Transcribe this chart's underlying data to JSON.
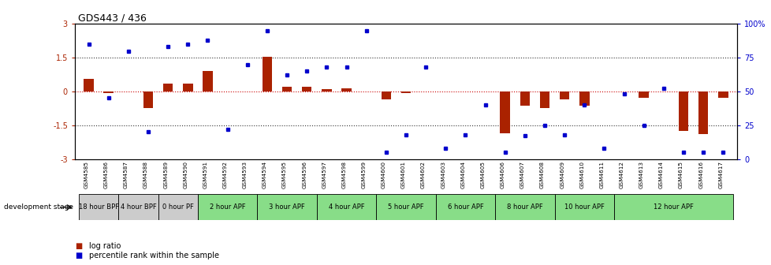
{
  "title": "GDS443 / 436",
  "samples": [
    "GSM4585",
    "GSM4586",
    "GSM4587",
    "GSM4588",
    "GSM4589",
    "GSM4590",
    "GSM4591",
    "GSM4592",
    "GSM4593",
    "GSM4594",
    "GSM4595",
    "GSM4596",
    "GSM4597",
    "GSM4598",
    "GSM4599",
    "GSM4600",
    "GSM4601",
    "GSM4602",
    "GSM4603",
    "GSM4604",
    "GSM4605",
    "GSM4606",
    "GSM4607",
    "GSM4608",
    "GSM4609",
    "GSM4610",
    "GSM4611",
    "GSM4612",
    "GSM4613",
    "GSM4614",
    "GSM4615",
    "GSM4616",
    "GSM4617"
  ],
  "log_ratio": [
    0.55,
    -0.08,
    0.0,
    -0.75,
    0.35,
    0.35,
    0.9,
    0.0,
    0.0,
    1.55,
    0.2,
    0.2,
    0.1,
    0.12,
    0.0,
    -0.35,
    -0.07,
    0.0,
    0.0,
    0.0,
    0.0,
    -1.85,
    -0.65,
    -0.75,
    -0.35,
    -0.65,
    0.0,
    0.0,
    -0.28,
    0.0,
    -1.75,
    -1.9,
    -0.3
  ],
  "percentile": [
    85,
    45,
    80,
    20,
    83,
    85,
    88,
    22,
    70,
    95,
    62,
    65,
    68,
    68,
    95,
    5,
    18,
    68,
    8,
    18,
    40,
    5,
    17,
    25,
    18,
    40,
    8,
    48,
    25,
    52,
    5,
    5,
    5
  ],
  "stages": [
    {
      "label": "18 hour BPF",
      "start": 0,
      "end": 2,
      "color": "#cccccc"
    },
    {
      "label": "4 hour BPF",
      "start": 2,
      "end": 4,
      "color": "#cccccc"
    },
    {
      "label": "0 hour PF",
      "start": 4,
      "end": 6,
      "color": "#cccccc"
    },
    {
      "label": "2 hour APF",
      "start": 6,
      "end": 9,
      "color": "#88dd88"
    },
    {
      "label": "3 hour APF",
      "start": 9,
      "end": 12,
      "color": "#88dd88"
    },
    {
      "label": "4 hour APF",
      "start": 12,
      "end": 15,
      "color": "#88dd88"
    },
    {
      "label": "5 hour APF",
      "start": 15,
      "end": 18,
      "color": "#88dd88"
    },
    {
      "label": "6 hour APF",
      "start": 18,
      "end": 21,
      "color": "#88dd88"
    },
    {
      "label": "8 hour APF",
      "start": 21,
      "end": 24,
      "color": "#88dd88"
    },
    {
      "label": "10 hour APF",
      "start": 24,
      "end": 27,
      "color": "#88dd88"
    },
    {
      "label": "12 hour APF",
      "start": 27,
      "end": 33,
      "color": "#88dd88"
    }
  ],
  "ylim": [
    -3,
    3
  ],
  "y2lim": [
    0,
    100
  ],
  "bar_color": "#aa2200",
  "dot_color": "#0000cc",
  "zero_line_color": "#cc0000",
  "dotted_line_color": "#333333",
  "dotted_levels": [
    1.5,
    -1.5
  ],
  "yticks": [
    -3,
    -1.5,
    0,
    1.5,
    3
  ],
  "y2ticks": [
    0,
    25,
    50,
    75,
    100
  ],
  "y2ticklabels": [
    "0",
    "25",
    "50",
    "75",
    "100%"
  ],
  "legend_items": [
    {
      "color": "#aa2200",
      "label": "log ratio"
    },
    {
      "color": "#0000cc",
      "label": "percentile rank within the sample"
    }
  ]
}
